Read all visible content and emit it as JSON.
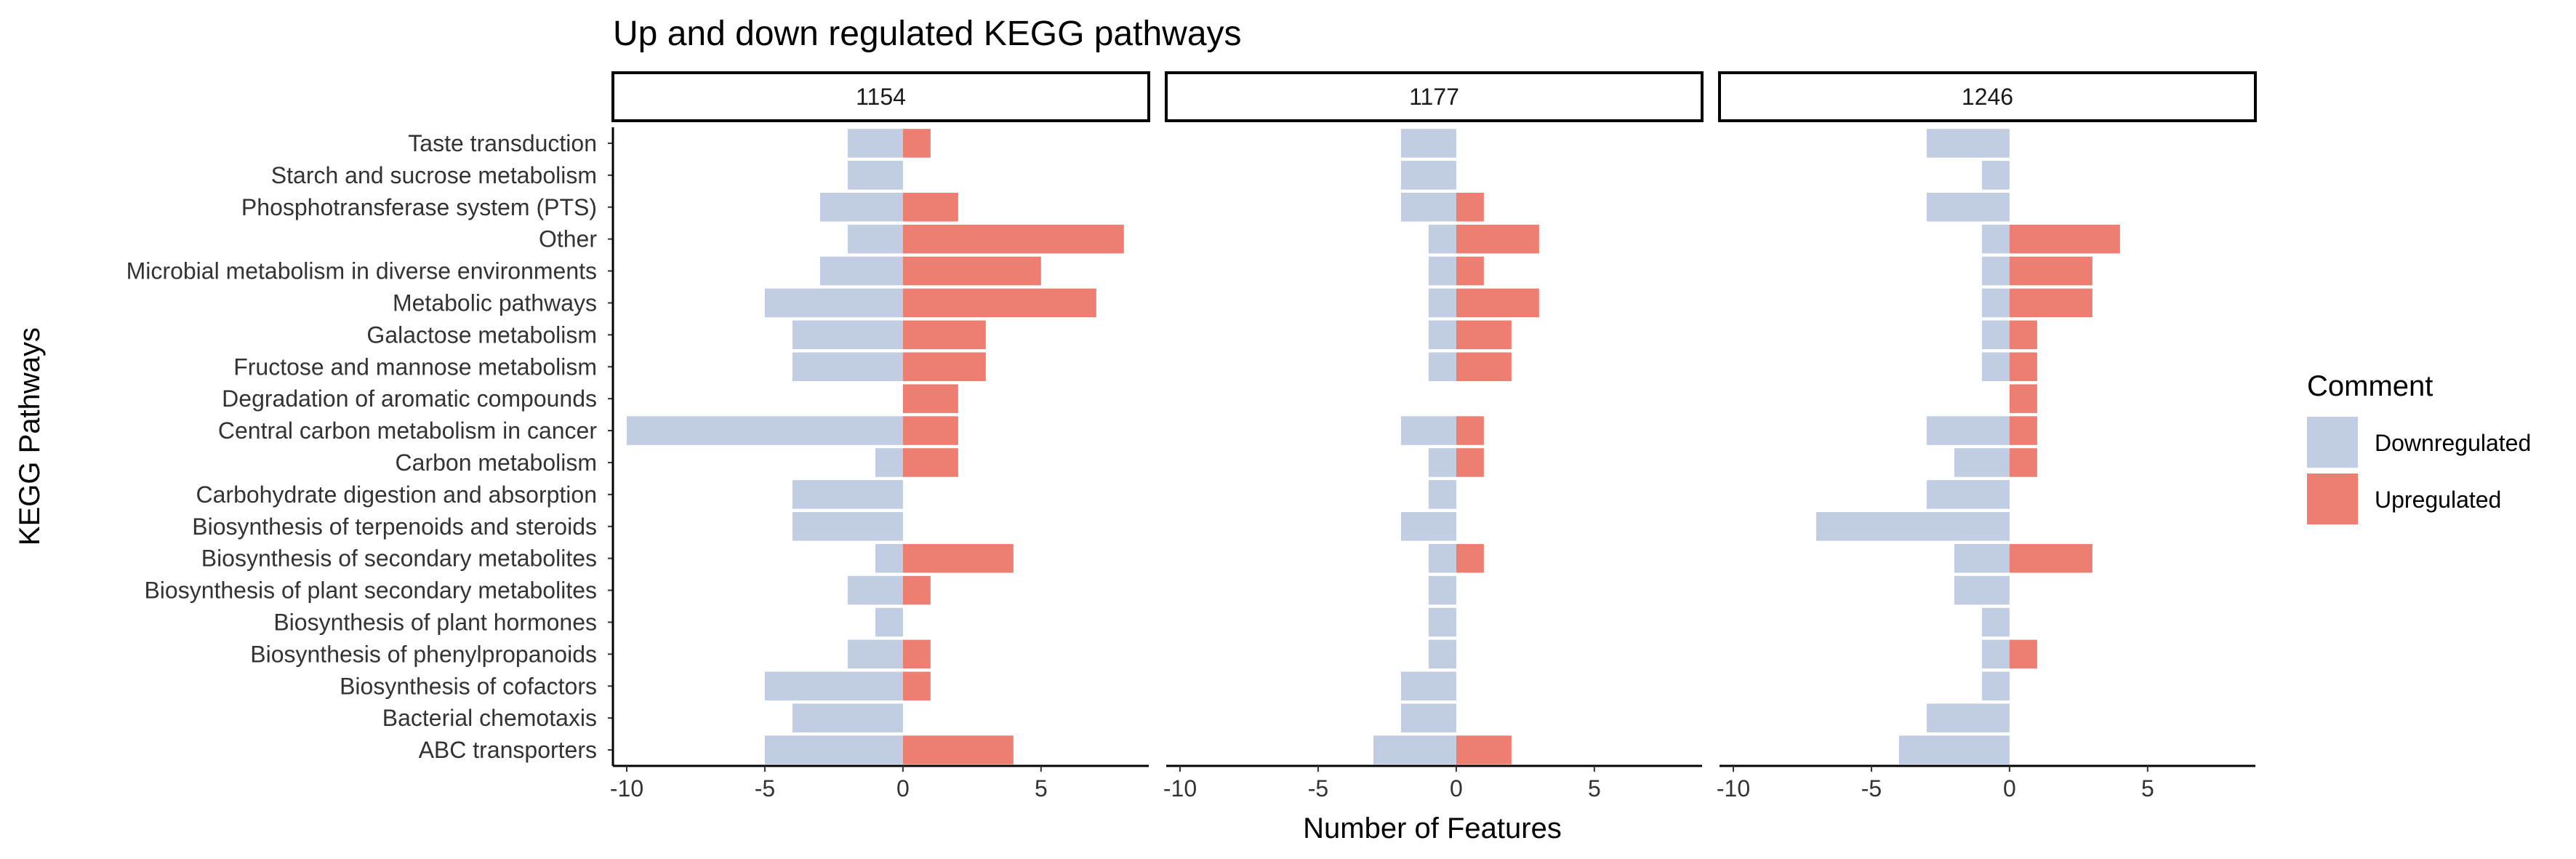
{
  "chart_data": {
    "type": "bar",
    "orientation": "horizontal",
    "title": "Up and down regulated KEGG pathways",
    "xlabel": "Number of Features",
    "ylabel": "KEGG Pathways",
    "xlim": [
      -10.5,
      8.9
    ],
    "xticks": [
      -10,
      -5,
      0,
      5
    ],
    "xtick_labels": [
      "-10",
      "-5",
      "0",
      "5"
    ],
    "grid": false,
    "legend": {
      "title": "Comment",
      "position": "right",
      "entries": [
        {
          "name": "Downregulated",
          "color": "#c0cde3"
        },
        {
          "name": "Upregulated",
          "color": "#ef7e72"
        }
      ]
    },
    "categories": [
      "Taste transduction",
      "Starch and sucrose metabolism",
      "Phosphotransferase system (PTS)",
      "Other",
      "Microbial metabolism in diverse environments",
      "Metabolic pathways",
      "Galactose metabolism",
      "Fructose and mannose metabolism",
      "Degradation of aromatic compounds",
      "Central carbon metabolism in cancer",
      "Carbon metabolism",
      "Carbohydrate digestion and absorption",
      "Biosynthesis of terpenoids and steroids",
      "Biosynthesis of secondary metabolites",
      "Biosynthesis of plant secondary metabolites",
      "Biosynthesis of plant hormones",
      "Biosynthesis of phenylpropanoids",
      "Biosynthesis of cofactors",
      "Bacterial chemotaxis",
      "ABC transporters"
    ],
    "panels": [
      {
        "label": "1154",
        "series": [
          {
            "name": "Downregulated",
            "values": [
              -2,
              -2,
              -3,
              -2,
              -3,
              -5,
              -4,
              -4,
              0,
              -10,
              -1,
              -4,
              -4,
              -1,
              -2,
              -1,
              -2,
              -5,
              -4,
              -5
            ]
          },
          {
            "name": "Upregulated",
            "values": [
              1,
              0,
              2,
              8,
              5,
              7,
              3,
              3,
              2,
              2,
              2,
              0,
              0,
              4,
              1,
              0,
              1,
              1,
              0,
              4
            ]
          }
        ]
      },
      {
        "label": "1177",
        "series": [
          {
            "name": "Downregulated",
            "values": [
              -2,
              -2,
              -2,
              -1,
              -1,
              -1,
              -1,
              -1,
              0,
              -2,
              -1,
              -1,
              -2,
              -1,
              -1,
              -1,
              -1,
              -2,
              -2,
              -3
            ]
          },
          {
            "name": "Upregulated",
            "values": [
              0,
              0,
              1,
              3,
              1,
              3,
              2,
              2,
              0,
              1,
              1,
              0,
              0,
              1,
              0,
              0,
              0,
              0,
              0,
              2
            ]
          }
        ]
      },
      {
        "label": "1246",
        "series": [
          {
            "name": "Downregulated",
            "values": [
              -3,
              -1,
              -3,
              -1,
              -1,
              -1,
              -1,
              -1,
              0,
              -3,
              -2,
              -3,
              -7,
              -2,
              -2,
              -1,
              -1,
              -1,
              -3,
              -4
            ]
          },
          {
            "name": "Upregulated",
            "values": [
              0,
              0,
              0,
              4,
              3,
              3,
              1,
              1,
              1,
              1,
              1,
              0,
              0,
              3,
              0,
              0,
              1,
              0,
              0,
              0
            ]
          }
        ]
      }
    ]
  }
}
